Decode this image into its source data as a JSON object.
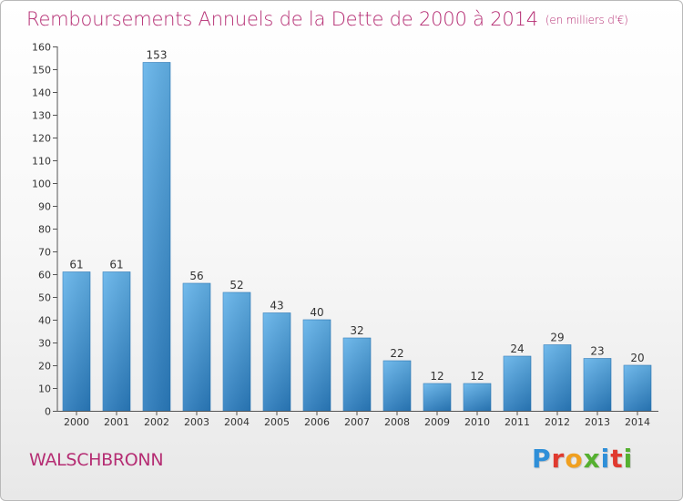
{
  "header": {
    "title": "Remboursements Annuels de la Dette de 2000 à 2014",
    "subtitle": "(en milliers d'€)"
  },
  "footer": {
    "commune": "WALSCHBRONN",
    "logo": "Proxiti"
  },
  "colors": {
    "title": "#b52d73",
    "bar_top": "#63b3ea",
    "bar_bottom": "#2a7bbd",
    "logo_letters": [
      "#2f8fd8",
      "#e03a2f",
      "#f0a020",
      "#55b030",
      "#2f8fd8",
      "#e03a2f",
      "#55b030"
    ]
  },
  "chart_data": {
    "type": "bar",
    "title": "Remboursements Annuels de la Dette de 2000 à 2014",
    "subtitle": "(en milliers d'€)",
    "categories": [
      "2000",
      "2001",
      "2002",
      "2003",
      "2004",
      "2005",
      "2006",
      "2007",
      "2008",
      "2009",
      "2010",
      "2011",
      "2012",
      "2013",
      "2014"
    ],
    "values": [
      61,
      61,
      153,
      56,
      52,
      43,
      40,
      32,
      22,
      12,
      12,
      24,
      29,
      23,
      20
    ],
    "xlabel": "",
    "ylabel": "",
    "ylim": [
      0,
      160
    ],
    "yticks": [
      0,
      10,
      20,
      30,
      40,
      50,
      60,
      70,
      80,
      90,
      100,
      110,
      120,
      130,
      140,
      150,
      160
    ],
    "grid": false,
    "legend": "none"
  }
}
